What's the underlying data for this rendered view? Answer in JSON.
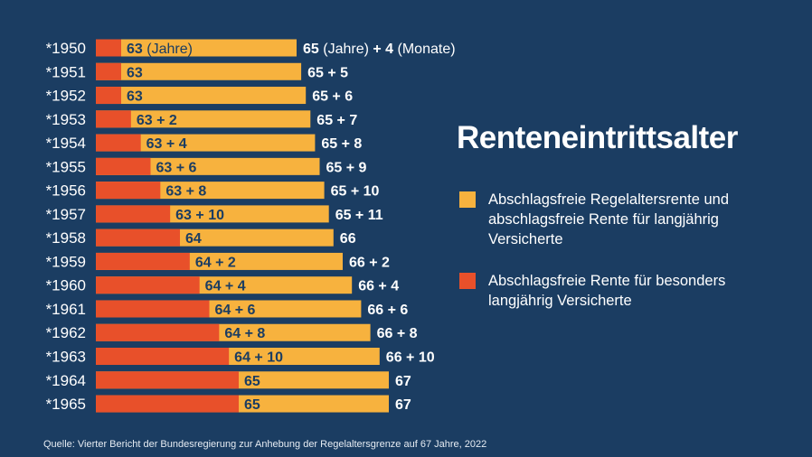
{
  "colors": {
    "background": "#1b3d62",
    "regular": "#f7b23e",
    "early": "#e8502a",
    "label_dark": "#1b3d62",
    "label_light": "#ffffff"
  },
  "title": "Renteneintrittsalter",
  "legend": [
    {
      "label": "Abschlagsfreie Regelaltersrente und abschlagsfreie Rente für langjährig Versicherte",
      "color": "#f7b23e"
    },
    {
      "label": "Abschlagsfreie Rente für besonders langjährig Versicherte",
      "color": "#e8502a"
    }
  ],
  "source": "Quelle: Vierter Bericht der Bundesregierung zur Anhebung der Regelaltersgrenze auf 67 Jahre, 2022",
  "chart_data": {
    "type": "bar",
    "title": "Renteneintrittsalter",
    "categories": [
      "*1950",
      "*1951",
      "*1952",
      "*1953",
      "*1954",
      "*1955",
      "*1956",
      "*1957",
      "*1958",
      "*1959",
      "*1960",
      "*1961",
      "*1962",
      "*1963",
      "*1964",
      "*1965"
    ],
    "series": [
      {
        "name": "Abschlagsfreie Regelaltersrente und abschlagsfreie Rente für langjährig Versicherte",
        "unit": "months",
        "values": [
          784,
          785,
          786,
          787,
          788,
          789,
          790,
          791,
          792,
          794,
          796,
          798,
          800,
          802,
          804,
          804
        ],
        "labels": [
          "65 (Jahre) + 4 (Monate)",
          "65 + 5",
          "65 + 6",
          "65 + 7",
          "65 + 8",
          "65 + 9",
          "65 + 10",
          "65 + 11",
          "66",
          "66 + 2",
          "66 + 4",
          "66 + 6",
          "66 + 8",
          "66 + 10",
          "67",
          "67"
        ]
      },
      {
        "name": "Abschlagsfreie Rente für besonders langjährig Versicherte",
        "unit": "months",
        "values": [
          756,
          756,
          756,
          758,
          760,
          762,
          764,
          766,
          768,
          770,
          772,
          774,
          776,
          778,
          780,
          780
        ],
        "labels": [
          "63 (Jahre)",
          "63",
          "63",
          "63 + 2",
          "63 + 4",
          "63 + 6",
          "63 + 8",
          "63 + 10",
          "64",
          "64 + 2",
          "64 + 4",
          "64 + 6",
          "64 + 8",
          "64 + 10",
          "65",
          "65"
        ]
      }
    ]
  }
}
